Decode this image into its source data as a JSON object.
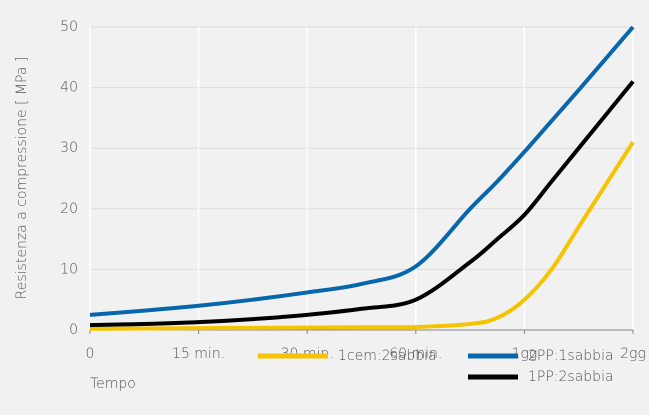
{
  "chart_data": {
    "type": "line",
    "y_label": "Resistenza a compressione [ MPa ]",
    "x_label": "Tempo",
    "x": [
      0,
      0.5,
      1,
      1.5,
      2,
      2.5,
      3,
      3.5,
      3.75,
      4,
      4.25,
      4.5,
      4.75,
      5
    ],
    "series": [
      {
        "name": "1cem:2sabbia",
        "color": "#f5c300",
        "values": [
          0.2,
          0.25,
          0.3,
          0.35,
          0.4,
          0.45,
          0.5,
          1,
          2,
          5,
          10,
          17,
          24,
          31
        ]
      },
      {
        "name": "2PP:1sabbia",
        "color": "#0866ad",
        "values": [
          2.5,
          3.2,
          4,
          5,
          6.2,
          7.6,
          10.5,
          20,
          24.5,
          29.4,
          34.5,
          39.6,
          44.8,
          50
        ]
      },
      {
        "name": "1PP:2sabbia",
        "color": "#000000",
        "values": [
          0.8,
          1,
          1.3,
          1.8,
          2.5,
          3.5,
          5,
          11.2,
          15,
          19,
          24.5,
          30,
          35.5,
          41
        ]
      }
    ],
    "xlim": [
      0,
      5
    ],
    "xticks": [
      {
        "value": 0,
        "label": "0"
      },
      {
        "value": 1,
        "label": "15 min."
      },
      {
        "value": 2,
        "label": "30 min."
      },
      {
        "value": 3,
        "label": "60 min."
      },
      {
        "value": 4,
        "label": "1gg"
      },
      {
        "value": 5,
        "label": "2gg"
      }
    ],
    "ylim": [
      0,
      50
    ],
    "yticks": [
      0,
      10,
      20,
      30,
      40,
      50
    ],
    "grid": true
  }
}
